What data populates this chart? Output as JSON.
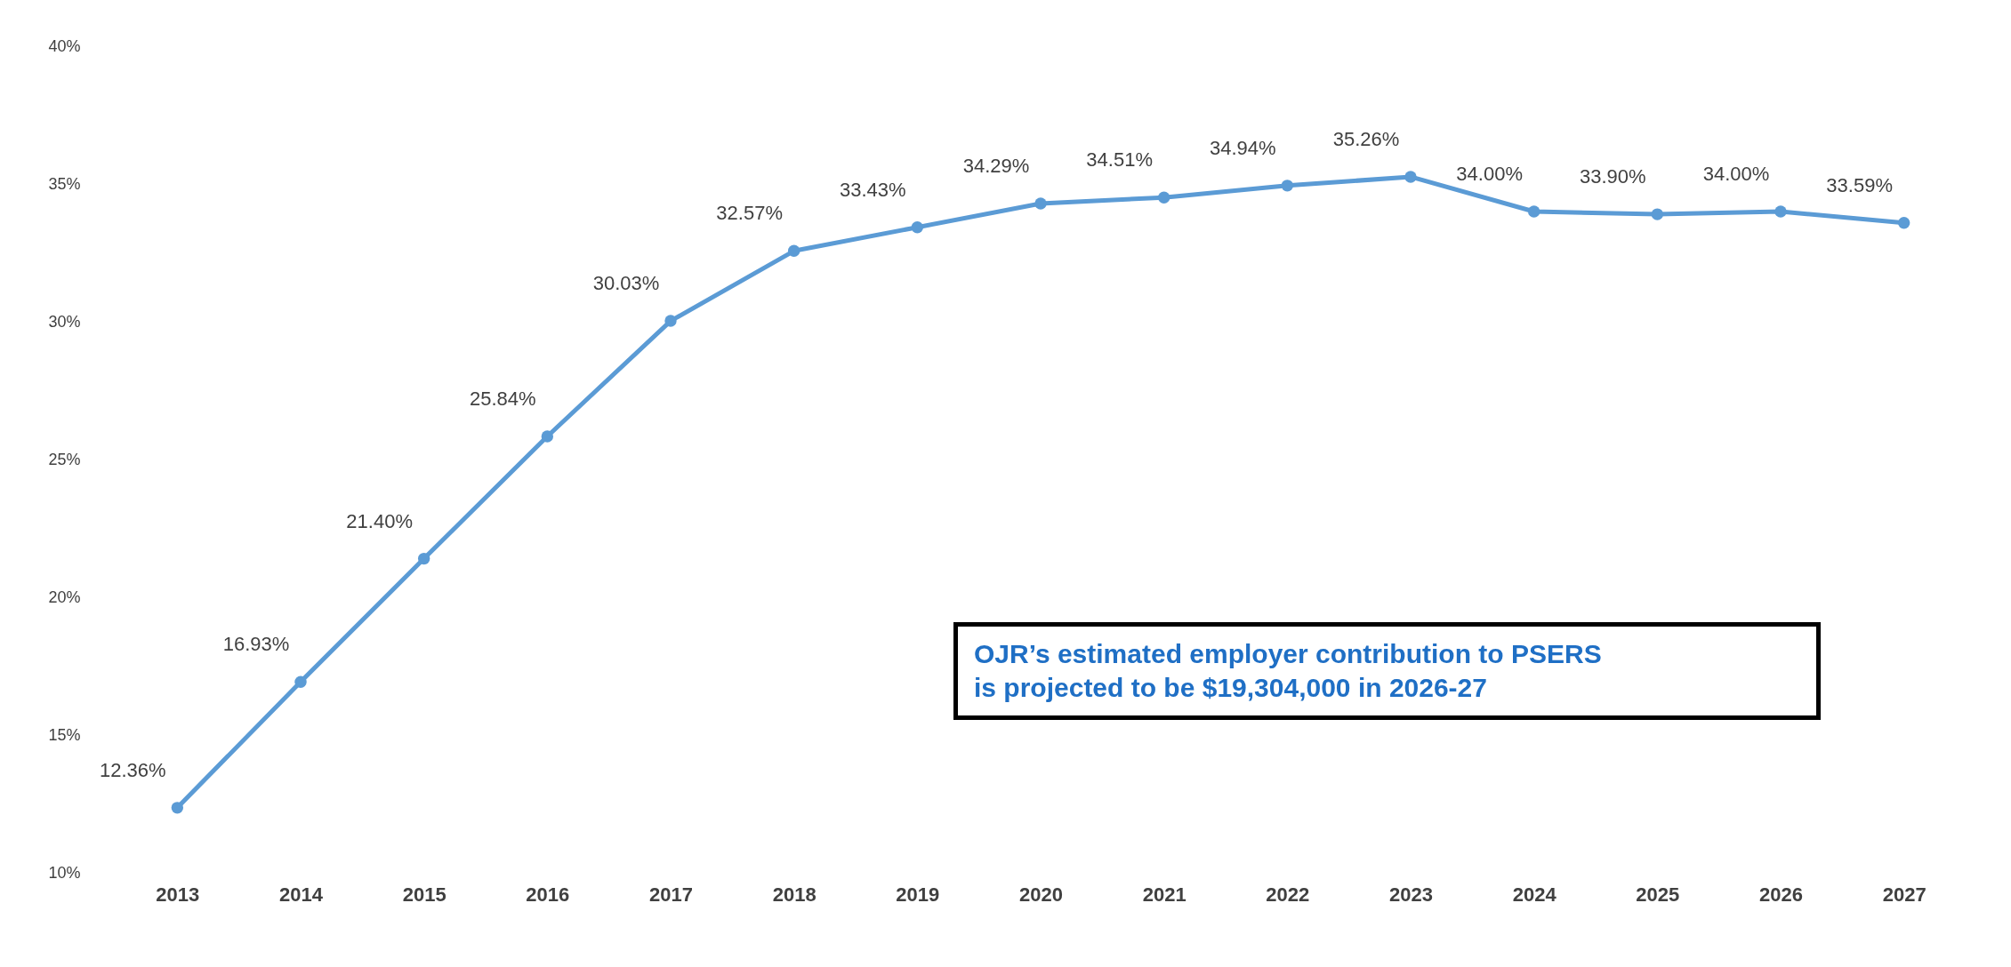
{
  "chart_data": {
    "type": "line",
    "categories": [
      "2013",
      "2014",
      "2015",
      "2016",
      "2017",
      "2018",
      "2019",
      "2020",
      "2021",
      "2022",
      "2023",
      "2024",
      "2025",
      "2026",
      "2027"
    ],
    "series": [
      {
        "color": "#5b9bd5",
        "values": [
          12.36,
          16.93,
          21.4,
          25.84,
          30.03,
          32.57,
          33.43,
          34.29,
          34.51,
          34.94,
          35.26,
          34.0,
          33.9,
          34.0,
          33.59
        ],
        "value_labels": [
          "12.36%",
          "16.93%",
          "21.40%",
          "25.84%",
          "30.03%",
          "32.57%",
          "33.43%",
          "34.29%",
          "34.51%",
          "34.94%",
          "35.26%",
          "34.00%",
          "33.90%",
          "34.00%",
          "33.59%"
        ]
      }
    ],
    "ylim": [
      10,
      40
    ],
    "yticks": [
      {
        "value": 10,
        "label": "10%"
      },
      {
        "value": 15,
        "label": "15%"
      },
      {
        "value": 20,
        "label": "20%"
      },
      {
        "value": 25,
        "label": "25%"
      },
      {
        "value": 30,
        "label": "30%"
      },
      {
        "value": 35,
        "label": "35%"
      },
      {
        "value": 40,
        "label": "40%"
      }
    ],
    "marker": "circle",
    "grid": false,
    "annotations": [
      "OJR’s estimated employer contribution to PSERS\nis projected to be $19,304,000 in 2026-27"
    ]
  }
}
